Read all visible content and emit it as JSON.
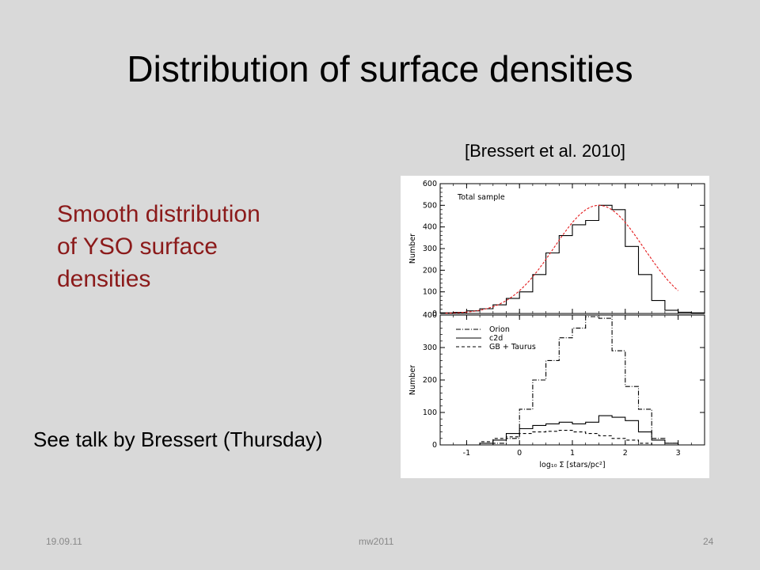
{
  "slide": {
    "title": "Distribution of surface densities",
    "citation": "[Bressert et al. 2010]",
    "highlight": [
      "Smooth distribution",
      "of YSO surface",
      "densities"
    ],
    "note": "See talk by Bressert (Thursday)",
    "footer": {
      "date": "19.09.11",
      "event": "mw2011",
      "page": "24"
    },
    "colors": {
      "background": "#d9d9d9",
      "highlight": "#8b1a1a",
      "gaussian": "#e41a1c"
    }
  },
  "chart_data": [
    {
      "type": "line",
      "panel": "top",
      "annotation": "Total sample",
      "ylabel": "Number",
      "xlim": [
        -1.5,
        3.5
      ],
      "ylim": [
        0,
        600
      ],
      "xticks": [
        -1,
        0,
        1,
        2,
        3
      ],
      "yticks": [
        0,
        100,
        200,
        300,
        400,
        500,
        600
      ],
      "bin_edges": [
        -1.5,
        -1.25,
        -1.0,
        -0.75,
        -0.5,
        -0.25,
        0.0,
        0.25,
        0.5,
        0.75,
        1.0,
        1.25,
        1.5,
        1.75,
        2.0,
        2.25,
        2.5,
        2.75,
        3.0,
        3.25,
        3.5
      ],
      "series": [
        {
          "style": "step",
          "values": [
            3,
            5,
            12,
            22,
            40,
            70,
            100,
            180,
            280,
            360,
            410,
            430,
            500,
            480,
            310,
            180,
            60,
            15,
            6,
            3
          ]
        },
        {
          "style": "dashed-gaussian",
          "amplitude": 500,
          "mean": 1.5,
          "sigma": 0.85,
          "x_range": [
            -1.4,
            3.0
          ]
        }
      ]
    },
    {
      "type": "line",
      "panel": "bottom",
      "ylabel": "Number",
      "xlabel": "log₁₀ Σ [stars/pc²]",
      "xlim": [
        -1.5,
        3.5
      ],
      "ylim": [
        0,
        400
      ],
      "xticks": [
        -1,
        0,
        1,
        2,
        3
      ],
      "yticks": [
        0,
        100,
        200,
        300,
        400
      ],
      "bin_edges": [
        -1.5,
        -1.25,
        -1.0,
        -0.75,
        -0.5,
        -0.25,
        0.0,
        0.25,
        0.5,
        0.75,
        1.0,
        1.25,
        1.5,
        1.75,
        2.0,
        2.25,
        2.5,
        2.75,
        3.0,
        3.25,
        3.5
      ],
      "series": [
        {
          "name": "Orion",
          "style": "dash-dot",
          "values": [
            0,
            0,
            0,
            0,
            5,
            20,
            110,
            200,
            260,
            330,
            360,
            395,
            390,
            290,
            180,
            110,
            20,
            5,
            0,
            0
          ]
        },
        {
          "name": "c2d",
          "style": "solid",
          "values": [
            0,
            0,
            0,
            5,
            15,
            35,
            50,
            60,
            65,
            70,
            65,
            70,
            90,
            85,
            75,
            40,
            15,
            5,
            0,
            0
          ]
        },
        {
          "name": "GB + Taurus",
          "style": "dashed",
          "values": [
            0,
            0,
            0,
            10,
            20,
            25,
            35,
            40,
            42,
            45,
            40,
            35,
            28,
            20,
            15,
            5,
            0,
            0,
            0,
            0
          ]
        }
      ]
    }
  ]
}
